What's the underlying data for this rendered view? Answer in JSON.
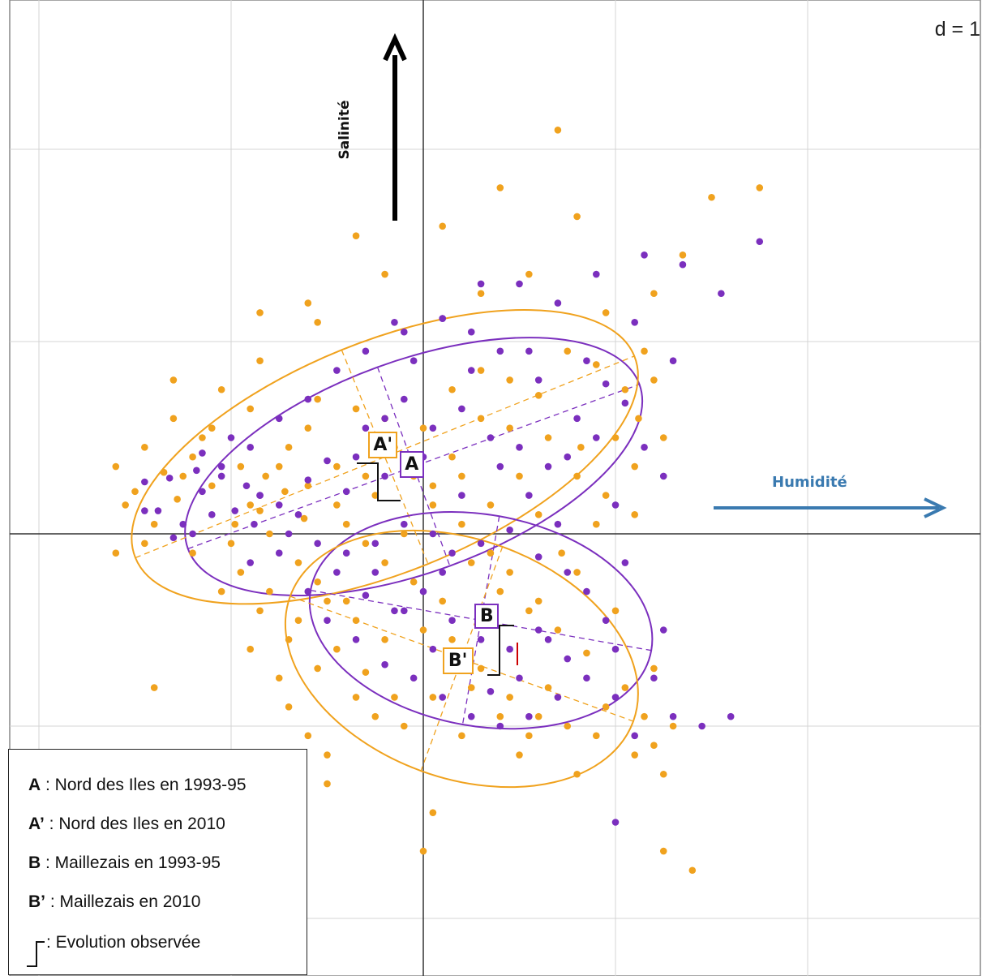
{
  "chart_data": {
    "type": "scatter",
    "title": "",
    "scale_label": "d = 1",
    "axes": {
      "x_label": "Humidité",
      "y_label": "Salinité",
      "x_range": [
        -2.2,
        2.9
      ],
      "y_range": [
        -1.9,
        2.7
      ],
      "grid": true,
      "grid_step": 1
    },
    "colors": {
      "group_1993_95": "#7b2fbe",
      "group_2010": "#f0a21e",
      "humidity_arrow": "#3a7ab0",
      "salinity_arrow": "#000000",
      "evolution_mark": "#cc0000"
    },
    "ellipses": [
      {
        "name": "A",
        "period": "1993-95",
        "cx": -0.05,
        "cy": 0.35,
        "rx": 1.25,
        "ry": 0.55,
        "angle_deg": 20
      },
      {
        "name": "A'",
        "period": "2010",
        "cx": -0.2,
        "cy": 0.4,
        "rx": 1.4,
        "ry": 0.6,
        "angle_deg": 22
      },
      {
        "name": "B",
        "period": "1993-95",
        "cx": 0.3,
        "cy": -0.45,
        "rx": 0.9,
        "ry": 0.55,
        "angle_deg": -10
      },
      {
        "name": "B'",
        "period": "2010",
        "cx": 0.2,
        "cy": -0.65,
        "rx": 0.95,
        "ry": 0.62,
        "angle_deg": -20
      }
    ],
    "group_labels": [
      {
        "text": "A'",
        "x": -0.21,
        "y": 0.46,
        "period": "2010"
      },
      {
        "text": "A",
        "x": -0.06,
        "y": 0.36,
        "period": "1993-95"
      },
      {
        "text": "B",
        "x": 0.33,
        "y": -0.43,
        "period": "1993-95"
      },
      {
        "text": "B'",
        "x": 0.18,
        "y": -0.66,
        "period": "2010"
      }
    ],
    "series": [
      {
        "name": "1993-95",
        "points": [
          [
            -1.45,
            0.27
          ],
          [
            -1.32,
            0.29
          ],
          [
            -1.18,
            0.33
          ],
          [
            -1.05,
            0.3
          ],
          [
            -0.92,
            0.25
          ],
          [
            -0.85,
            0.2
          ],
          [
            -0.75,
            0.15
          ],
          [
            -1.1,
            0.1
          ],
          [
            -1.25,
            0.05
          ],
          [
            -1.38,
            0.12
          ],
          [
            -1.15,
            0.22
          ],
          [
            -0.98,
            0.12
          ],
          [
            -0.88,
            0.05
          ],
          [
            -0.7,
            0.0
          ],
          [
            -0.6,
            0.28
          ],
          [
            -0.5,
            0.38
          ],
          [
            -0.4,
            0.22
          ],
          [
            -0.3,
            0.55
          ],
          [
            -0.2,
            0.6
          ],
          [
            -0.1,
            0.7
          ],
          [
            0.05,
            0.55
          ],
          [
            0.2,
            0.65
          ],
          [
            0.35,
            0.5
          ],
          [
            0.5,
            0.45
          ],
          [
            0.65,
            0.35
          ],
          [
            0.8,
            0.6
          ],
          [
            0.95,
            0.78
          ],
          [
            1.05,
            0.68
          ],
          [
            0.9,
            0.5
          ],
          [
            0.75,
            0.4
          ],
          [
            0.6,
            0.8
          ],
          [
            0.4,
            0.95
          ],
          [
            0.25,
            1.05
          ],
          [
            0.1,
            1.12
          ],
          [
            -0.1,
            1.05
          ],
          [
            -0.3,
            0.95
          ],
          [
            -0.45,
            0.85
          ],
          [
            -0.6,
            0.7
          ],
          [
            -0.75,
            0.6
          ],
          [
            -0.9,
            0.45
          ],
          [
            -1.0,
            0.5
          ],
          [
            -1.15,
            0.42
          ],
          [
            -0.55,
            -0.05
          ],
          [
            -0.4,
            -0.1
          ],
          [
            -0.25,
            -0.05
          ],
          [
            -0.1,
            0.05
          ],
          [
            0.05,
            0.0
          ],
          [
            0.15,
            -0.1
          ],
          [
            0.3,
            -0.05
          ],
          [
            0.45,
            0.02
          ],
          [
            0.6,
            -0.12
          ],
          [
            0.75,
            -0.2
          ],
          [
            0.85,
            -0.3
          ],
          [
            0.95,
            -0.45
          ],
          [
            1.0,
            -0.6
          ],
          [
            0.85,
            -0.75
          ],
          [
            0.7,
            -0.85
          ],
          [
            0.55,
            -0.95
          ],
          [
            0.4,
            -1.0
          ],
          [
            0.25,
            -0.95
          ],
          [
            0.1,
            -0.85
          ],
          [
            -0.05,
            -0.75
          ],
          [
            -0.2,
            -0.68
          ],
          [
            -0.35,
            -0.55
          ],
          [
            -0.5,
            -0.45
          ],
          [
            -0.6,
            -0.3
          ],
          [
            -0.45,
            -0.2
          ],
          [
            -0.3,
            -0.32
          ],
          [
            -0.15,
            -0.4
          ],
          [
            0.0,
            -0.3
          ],
          [
            0.15,
            -0.45
          ],
          [
            0.3,
            -0.55
          ],
          [
            0.45,
            -0.6
          ],
          [
            0.6,
            -0.5
          ],
          [
            0.75,
            -0.65
          ],
          [
            0.5,
            -0.75
          ],
          [
            0.35,
            -0.82
          ],
          [
            0.2,
            -0.7
          ],
          [
            1.3,
            -0.95
          ],
          [
            1.45,
            -1.0
          ],
          [
            1.6,
            -0.95
          ],
          [
            1.15,
            1.45
          ],
          [
            1.35,
            1.4
          ],
          [
            1.75,
            1.52
          ],
          [
            1.55,
            1.25
          ],
          [
            1.3,
            0.9
          ],
          [
            1.1,
            1.1
          ],
          [
            0.9,
            1.35
          ],
          [
            0.7,
            1.2
          ],
          [
            0.5,
            1.3
          ],
          [
            0.3,
            1.3
          ],
          [
            0.1,
            1.12
          ],
          [
            -0.15,
            1.1
          ],
          [
            -0.85,
            0.2
          ],
          [
            -1.05,
            0.35
          ],
          [
            -1.2,
            0.0
          ],
          [
            -1.3,
            -0.02
          ],
          [
            -0.65,
            0.1
          ],
          [
            -0.35,
            0.4
          ],
          [
            -0.2,
            0.3
          ],
          [
            0.0,
            0.4
          ],
          [
            0.55,
            0.2
          ],
          [
            0.7,
            0.05
          ],
          [
            1.0,
            0.15
          ],
          [
            0.85,
            0.9
          ],
          [
            0.55,
            0.95
          ],
          [
            0.25,
            0.85
          ],
          [
            -0.05,
            0.9
          ],
          [
            1.15,
            0.45
          ],
          [
            1.25,
            0.3
          ],
          [
            1.05,
            -0.15
          ],
          [
            1.25,
            -0.5
          ],
          [
            1.2,
            -0.75
          ],
          [
            1.0,
            -0.85
          ],
          [
            1.1,
            -1.05
          ],
          [
            -0.1,
            -0.4
          ],
          [
            -0.25,
            -0.2
          ],
          [
            0.05,
            -0.6
          ],
          [
            0.1,
            -0.2
          ],
          [
            0.2,
            0.2
          ],
          [
            1.0,
            -1.5
          ],
          [
            0.65,
            -0.55
          ],
          [
            -0.9,
            -0.15
          ],
          [
            -1.45,
            0.12
          ],
          [
            -0.75,
            -0.1
          ],
          [
            0.4,
            0.35
          ]
        ]
      },
      {
        "name": "2010",
        "points": [
          [
            -1.5,
            0.22
          ],
          [
            -1.35,
            0.32
          ],
          [
            -1.2,
            0.4
          ],
          [
            -1.1,
            0.25
          ],
          [
            -0.95,
            0.35
          ],
          [
            -0.82,
            0.3
          ],
          [
            -0.72,
            0.22
          ],
          [
            -1.28,
            0.18
          ],
          [
            -1.4,
            0.05
          ],
          [
            -1.55,
            0.15
          ],
          [
            -1.6,
            0.35
          ],
          [
            -0.98,
            0.05
          ],
          [
            -0.8,
            0.0
          ],
          [
            -0.62,
            0.08
          ],
          [
            -0.45,
            0.15
          ],
          [
            -0.3,
            0.3
          ],
          [
            -0.15,
            0.45
          ],
          [
            0.0,
            0.55
          ],
          [
            0.15,
            0.75
          ],
          [
            0.3,
            0.85
          ],
          [
            0.45,
            0.8
          ],
          [
            0.6,
            0.72
          ],
          [
            0.75,
            0.95
          ],
          [
            0.9,
            0.88
          ],
          [
            1.05,
            0.75
          ],
          [
            1.2,
            1.25
          ],
          [
            1.35,
            1.45
          ],
          [
            1.5,
            1.75
          ],
          [
            1.75,
            1.8
          ],
          [
            0.7,
            2.1
          ],
          [
            0.4,
            1.8
          ],
          [
            -0.2,
            1.35
          ],
          [
            -0.55,
            1.1
          ],
          [
            -0.85,
            0.9
          ],
          [
            -1.05,
            0.75
          ],
          [
            -1.3,
            0.6
          ],
          [
            -1.6,
            -0.1
          ],
          [
            -1.45,
            -0.05
          ],
          [
            -0.55,
            -0.25
          ],
          [
            -0.4,
            -0.35
          ],
          [
            -0.2,
            -0.15
          ],
          [
            -0.05,
            -0.25
          ],
          [
            0.1,
            -0.35
          ],
          [
            0.25,
            -0.15
          ],
          [
            0.4,
            -0.3
          ],
          [
            0.55,
            -0.4
          ],
          [
            0.7,
            -0.5
          ],
          [
            0.85,
            -0.62
          ],
          [
            1.05,
            -0.8
          ],
          [
            1.15,
            -0.95
          ],
          [
            1.2,
            -1.1
          ],
          [
            1.25,
            -1.25
          ],
          [
            0.8,
            -1.25
          ],
          [
            0.5,
            -1.15
          ],
          [
            0.2,
            -1.05
          ],
          [
            -0.1,
            -1.0
          ],
          [
            -0.35,
            -0.85
          ],
          [
            -0.55,
            -0.7
          ],
          [
            -0.7,
            -0.55
          ],
          [
            -0.85,
            -0.4
          ],
          [
            -0.65,
            -0.15
          ],
          [
            -0.5,
            -0.35
          ],
          [
            -0.35,
            -0.45
          ],
          [
            -0.2,
            -0.55
          ],
          [
            0.0,
            -0.5
          ],
          [
            0.15,
            -0.55
          ],
          [
            0.3,
            -0.7
          ],
          [
            0.45,
            -0.85
          ],
          [
            0.6,
            -0.95
          ],
          [
            0.75,
            -1.0
          ],
          [
            0.95,
            -0.9
          ],
          [
            -0.25,
            -0.95
          ],
          [
            -0.5,
            -1.3
          ],
          [
            -0.6,
            -1.05
          ],
          [
            -0.75,
            -0.75
          ],
          [
            -1.35,
            -1.2
          ],
          [
            -0.5,
            -1.15
          ],
          [
            0.05,
            -1.45
          ],
          [
            1.25,
            -1.65
          ],
          [
            1.4,
            -1.75
          ],
          [
            0.1,
            1.6
          ],
          [
            -0.35,
            1.55
          ],
          [
            -0.6,
            1.2
          ],
          [
            -0.85,
            1.15
          ],
          [
            -1.3,
            0.8
          ],
          [
            -1.1,
            0.55
          ],
          [
            -0.9,
            0.65
          ],
          [
            -0.6,
            0.55
          ],
          [
            -0.45,
            0.35
          ],
          [
            -0.25,
            0.2
          ],
          [
            -0.1,
            0.0
          ],
          [
            0.05,
            0.15
          ],
          [
            0.2,
            0.3
          ],
          [
            0.35,
            0.15
          ],
          [
            0.5,
            0.3
          ],
          [
            0.65,
            0.5
          ],
          [
            0.8,
            0.3
          ],
          [
            1.0,
            0.5
          ],
          [
            1.12,
            0.6
          ],
          [
            1.2,
            0.8
          ],
          [
            1.25,
            0.5
          ],
          [
            1.1,
            0.35
          ],
          [
            0.95,
            0.2
          ],
          [
            0.82,
            0.45
          ],
          [
            0.6,
            0.1
          ],
          [
            0.45,
            0.55
          ],
          [
            0.3,
            0.6
          ],
          [
            0.15,
            0.4
          ],
          [
            -0.05,
            0.3
          ],
          [
            -0.2,
            0.6
          ],
          [
            -0.35,
            0.65
          ],
          [
            -0.55,
            0.7
          ],
          [
            -0.7,
            0.45
          ],
          [
            -0.85,
            0.12
          ],
          [
            -1.0,
            -0.05
          ],
          [
            -1.2,
            -0.1
          ],
          [
            -1.05,
            -0.3
          ],
          [
            -0.95,
            -0.2
          ],
          [
            -0.8,
            -0.3
          ],
          [
            -0.65,
            -0.45
          ],
          [
            -0.45,
            -0.6
          ],
          [
            -0.3,
            -0.72
          ],
          [
            -0.15,
            -0.85
          ],
          [
            0.05,
            -0.85
          ],
          [
            0.25,
            -0.8
          ],
          [
            0.4,
            -0.95
          ],
          [
            0.55,
            -1.05
          ],
          [
            0.65,
            -0.8
          ],
          [
            0.9,
            -1.05
          ],
          [
            1.1,
            -1.15
          ],
          [
            1.3,
            -1.0
          ],
          [
            1.2,
            -0.7
          ],
          [
            1.0,
            -0.4
          ],
          [
            0.8,
            -0.2
          ],
          [
            0.9,
            0.05
          ],
          [
            1.1,
            0.1
          ],
          [
            0.72,
            -0.1
          ],
          [
            0.35,
            -0.1
          ],
          [
            0.2,
            0.05
          ],
          [
            0.05,
            0.25
          ],
          [
            -1.25,
            0.3
          ],
          [
            -1.15,
            0.5
          ],
          [
            -1.45,
            0.45
          ],
          [
            -0.9,
            0.15
          ],
          [
            -0.75,
            0.35
          ],
          [
            -0.6,
            0.25
          ],
          [
            -0.4,
            0.05
          ],
          [
            -0.3,
            -0.05
          ],
          [
            -1.9,
            -2.1
          ],
          [
            0.55,
            1.35
          ],
          [
            0.3,
            1.25
          ],
          [
            0.0,
            -1.65
          ],
          [
            0.8,
            1.65
          ],
          [
            0.95,
            1.15
          ],
          [
            1.15,
            0.95
          ],
          [
            -0.7,
            -0.9
          ],
          [
            -0.9,
            -0.6
          ],
          [
            -1.4,
            -0.8
          ],
          [
            0.6,
            -0.35
          ],
          [
            0.45,
            -0.2
          ]
        ]
      }
    ]
  },
  "legend": {
    "items": [
      {
        "key": "A",
        "text": " : Nord des Iles en 1993-95"
      },
      {
        "key": "A’",
        "text": " : Nord des Iles en 2010"
      },
      {
        "key": "B",
        "text": " : Maillezais en 1993-95"
      },
      {
        "key": "B’",
        "text": " : Maillezais en 2010"
      },
      {
        "key": "",
        "text": " : Evolution observée"
      }
    ]
  }
}
